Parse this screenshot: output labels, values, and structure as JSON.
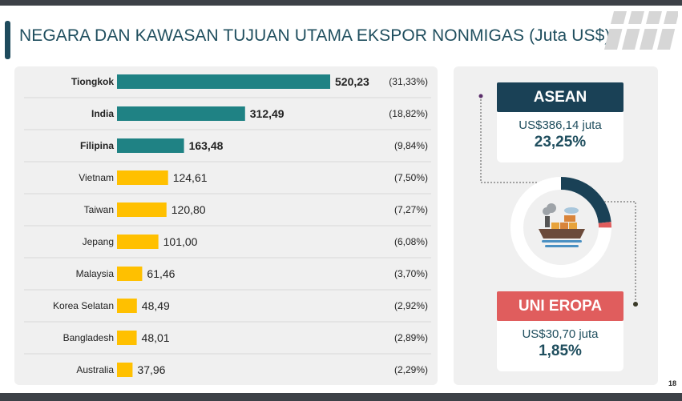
{
  "page": {
    "title": "NEGARA DAN KAWASAN TUJUAN UTAMA EKSPOR NONMIGAS (Juta US$)",
    "page_number": "18"
  },
  "chart_data": {
    "type": "bar",
    "orientation": "horizontal",
    "categories": [
      "Tiongkok",
      "India",
      "Filipina",
      "Vietnam",
      "Taiwan",
      "Jepang",
      "Malaysia",
      "Korea Selatan",
      "Bangladesh",
      "Australia"
    ],
    "values": [
      520.23,
      312.49,
      163.48,
      124.61,
      120.8,
      101.0,
      61.46,
      48.49,
      48.01,
      37.96
    ],
    "value_labels": [
      "520,23",
      "312,49",
      "163,48",
      "124,61",
      "120,80",
      "101,00",
      "61,46",
      "48,49",
      "48,01",
      "37,96"
    ],
    "shares": [
      "(31,33%)",
      "(18,82%)",
      "(9,84%)",
      "(7,50%)",
      "(7,27%)",
      "(6,08%)",
      "(3,70%)",
      "(2,92%)",
      "(2,89%)",
      "(2,29%)"
    ],
    "highlighted": [
      true,
      true,
      true,
      false,
      false,
      false,
      false,
      false,
      false,
      false
    ],
    "colors": {
      "highlight": "#1f8284",
      "normal": "#ffc000"
    },
    "grid": false,
    "xlim": [
      0,
      520.23
    ]
  },
  "regions": {
    "asean": {
      "label": "ASEAN",
      "amount": "US$386,14 juta",
      "share": "23,25%",
      "color": "#1a4156"
    },
    "eu": {
      "label": "UNI EROPA",
      "amount": "US$30,70 juta",
      "share": "1,85%",
      "color": "#e05d5d"
    }
  },
  "donut": {
    "segments": [
      {
        "region": "asean",
        "fraction": 0.2325,
        "color": "#1a4156"
      },
      {
        "region": "eu",
        "fraction": 0.0185,
        "color": "#e05d5d"
      }
    ],
    "track_color": "#ffffff",
    "icon": "cargo-ship-icon"
  },
  "icons": {
    "logo": "corner-logo-stripes-icon"
  }
}
